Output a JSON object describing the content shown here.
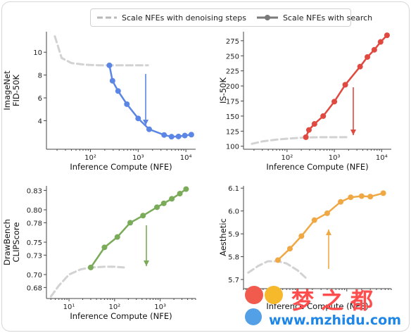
{
  "legend": {
    "items": [
      {
        "label": "Scale NFEs with denoising steps",
        "style": "dashed",
        "color": "#b8b8b8"
      },
      {
        "label": "Scale NFEs with search",
        "style": "solid-marker",
        "color": "#7a7a7a"
      }
    ]
  },
  "chart_data": [
    {
      "type": "line",
      "id": "fid",
      "ylabel": "ImageNet\nFID-50K",
      "xlabel": "Inference Compute (NFE)",
      "xscale": "log",
      "xticks": [
        100,
        1000,
        10000
      ],
      "xtick_labels": [
        "10²",
        "10³",
        "10⁴"
      ],
      "yticks": [
        4,
        6,
        8,
        10
      ],
      "ytick_labels": [
        "4",
        "6",
        "8",
        "10"
      ],
      "xlim": [
        12,
        16000
      ],
      "ylim": [
        1.5,
        11.8
      ],
      "color": "#5b86e5",
      "series": [
        {
          "style": "dashed",
          "x": [
            18,
            25,
            40,
            80,
            150,
            300,
            600,
            1000,
            1600
          ],
          "y": [
            11.4,
            9.5,
            9.05,
            8.9,
            8.86,
            8.85,
            8.85,
            8.85,
            8.85
          ]
        },
        {
          "style": "solid",
          "x": [
            250,
            290,
            380,
            580,
            1000,
            1700,
            3500,
            5000,
            7000,
            9500,
            13000
          ],
          "y": [
            8.85,
            7.5,
            6.6,
            5.45,
            4.2,
            3.25,
            2.75,
            2.6,
            2.62,
            2.7,
            2.78
          ]
        }
      ],
      "arrow": {
        "direction": "down"
      }
    },
    {
      "type": "line",
      "id": "is",
      "ylabel": "IS-50K",
      "xlabel": "Inference Compute (NFE)",
      "xscale": "log",
      "xticks": [
        100,
        1000,
        10000
      ],
      "xtick_labels": [
        "10²",
        "10³",
        "10⁴"
      ],
      "yticks": [
        100,
        125,
        150,
        175,
        200,
        225,
        250,
        275
      ],
      "ytick_labels": [
        "100",
        "125",
        "150",
        "175",
        "200",
        "225",
        "250",
        "275"
      ],
      "xlim": [
        12,
        16000
      ],
      "ylim": [
        95,
        290
      ],
      "color": "#e0493f",
      "series": [
        {
          "style": "dashed",
          "x": [
            18,
            30,
            60,
            120,
            250,
            500,
            1000,
            1800
          ],
          "y": [
            104,
            108,
            111,
            113,
            114.5,
            115,
            115,
            115
          ]
        },
        {
          "style": "solid",
          "x": [
            250,
            290,
            380,
            580,
            1000,
            1700,
            3500,
            5000,
            7000,
            9500,
            13000
          ],
          "y": [
            115,
            127,
            137,
            150,
            174,
            202,
            232,
            248,
            260,
            273,
            284
          ]
        }
      ],
      "arrow": {
        "direction": "up"
      }
    },
    {
      "type": "line",
      "id": "clip",
      "ylabel": "DrawBench\nCLIPScore",
      "xlabel": "Inference Compute (NFE)",
      "xscale": "log",
      "xticks": [
        10,
        100,
        1000
      ],
      "xtick_labels": [
        "10¹",
        "10²",
        "10³"
      ],
      "yticks": [
        0.68,
        0.7,
        0.73,
        0.75,
        0.78,
        0.8,
        0.83
      ],
      "ytick_labels": [
        "0.68",
        "0.70",
        "0.73",
        "0.75",
        "0.78",
        "0.80",
        "0.83"
      ],
      "xlim": [
        3.2,
        6000
      ],
      "ylim": [
        0.663,
        0.837
      ],
      "color": "#7aab58",
      "series": [
        {
          "style": "dashed",
          "x": [
            4,
            6,
            10,
            18,
            30,
            60,
            100,
            160
          ],
          "y": [
            0.666,
            0.683,
            0.7,
            0.708,
            0.711,
            0.712,
            0.712,
            0.711
          ]
        },
        {
          "style": "solid",
          "x": [
            30,
            60,
            115,
            220,
            420,
            850,
            1200,
            1800,
            2700,
            3700
          ],
          "y": [
            0.711,
            0.742,
            0.758,
            0.78,
            0.791,
            0.804,
            0.81,
            0.817,
            0.825,
            0.832
          ]
        }
      ],
      "arrow": {
        "direction": "up"
      }
    },
    {
      "type": "line",
      "id": "aesthetic",
      "ylabel": "Aesthetic",
      "xlabel": "Inference Compute (NFE)",
      "xscale": "log",
      "xticks": [],
      "xtick_labels": [],
      "yticks": [
        5.7,
        5.8,
        5.9,
        6.0,
        6.1
      ],
      "ytick_labels": [
        "5.7",
        "5.8",
        "5.9",
        "6.0",
        "6.1"
      ],
      "xlim": [
        8,
        8000
      ],
      "ylim": [
        5.66,
        6.11
      ],
      "color": "#f0a844",
      "series": [
        {
          "style": "dashed",
          "x": [
            10,
            16,
            25,
            40,
            60,
            100,
            160
          ],
          "y": [
            5.73,
            5.76,
            5.78,
            5.78,
            5.77,
            5.74,
            5.7
          ]
        },
        {
          "style": "solid",
          "x": [
            40,
            70,
            120,
            220,
            400,
            750,
            1200,
            2000,
            3000,
            5500
          ],
          "y": [
            5.785,
            5.835,
            5.89,
            5.96,
            5.99,
            6.04,
            6.06,
            6.065,
            6.063,
            6.078
          ]
        }
      ],
      "arrow": {
        "direction": "up"
      }
    }
  ],
  "watermark": {
    "title": "梦之都",
    "url": "www.mzhidu.com"
  }
}
